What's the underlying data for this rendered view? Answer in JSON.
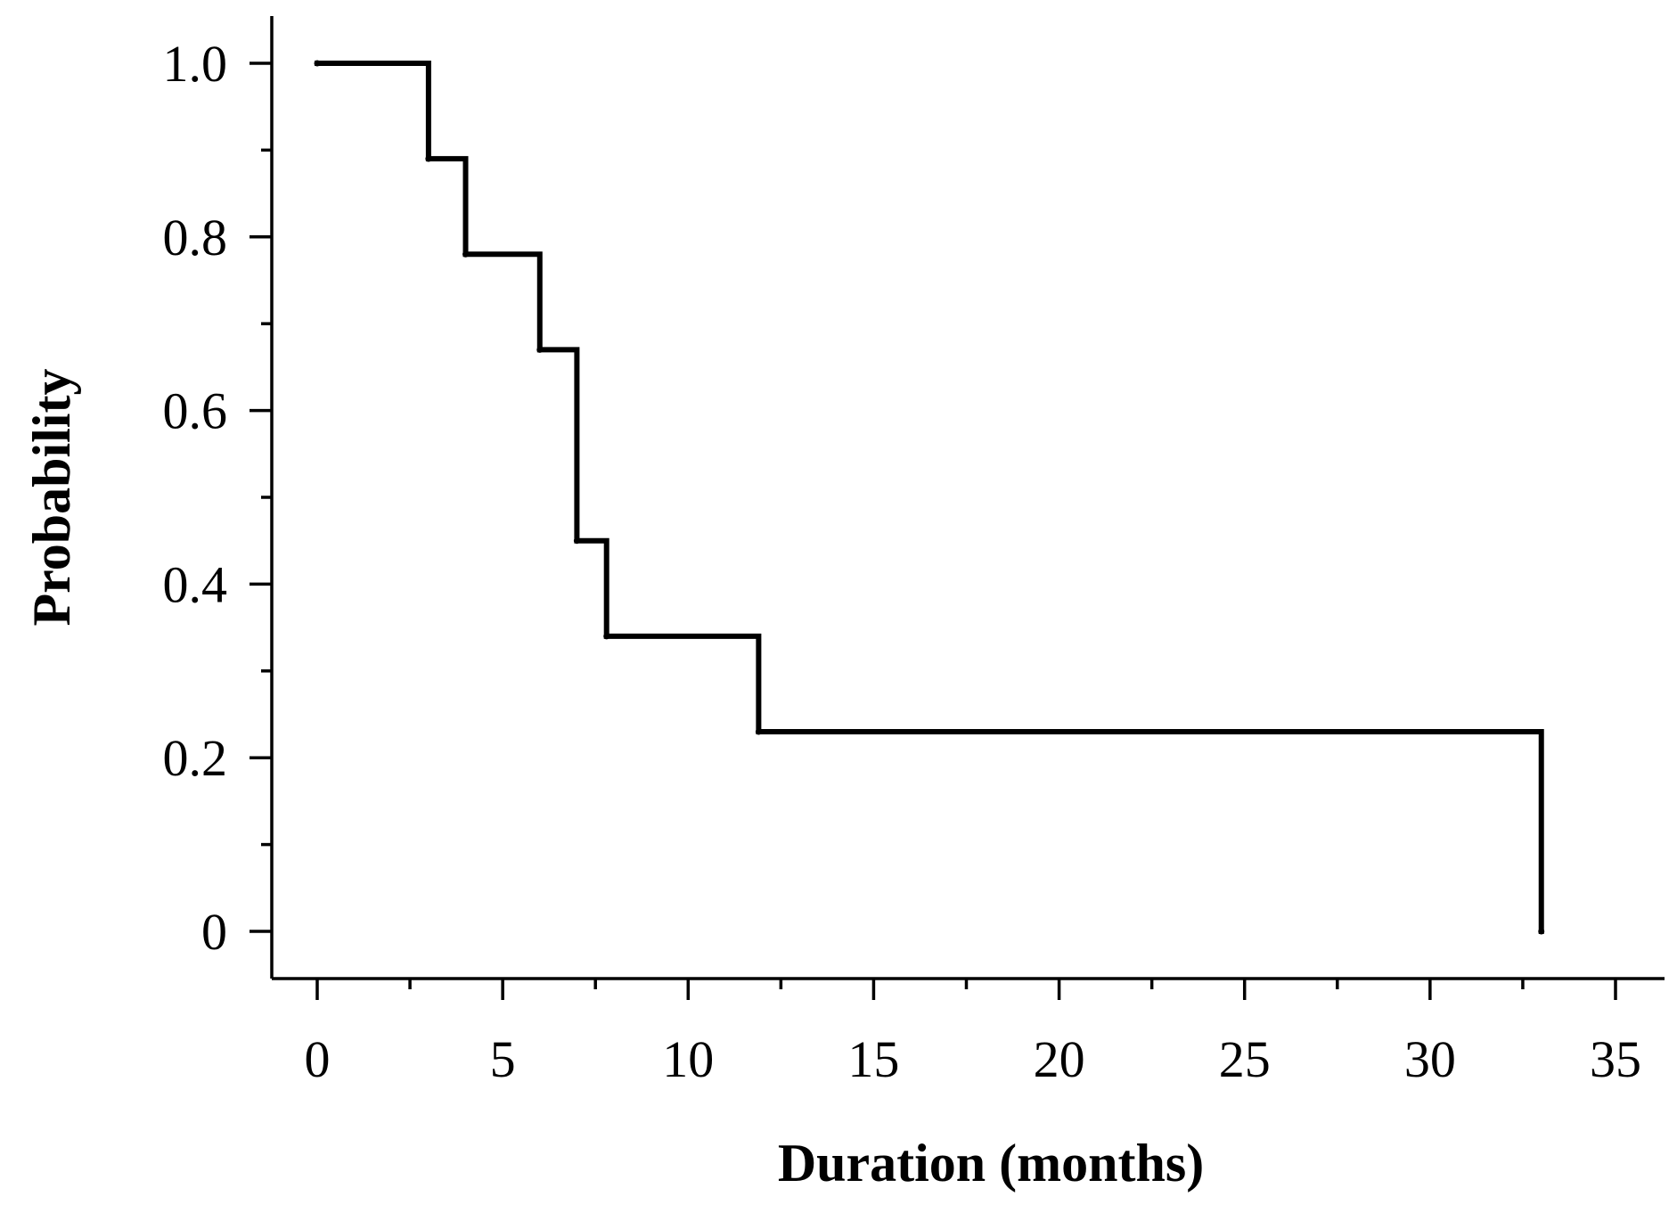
{
  "chart_data": {
    "type": "line",
    "step": "post",
    "xlabel": "Duration (months)",
    "ylabel": "Probability",
    "xlim": [
      0,
      35
    ],
    "ylim": [
      0,
      1.0
    ],
    "x_ticks": [
      0,
      5,
      10,
      15,
      20,
      25,
      30,
      35
    ],
    "x_tick_labels": [
      "0",
      "5",
      "10",
      "15",
      "20",
      "25",
      "30",
      "35"
    ],
    "y_ticks": [
      0,
      0.2,
      0.4,
      0.6,
      0.8,
      1.0
    ],
    "y_tick_labels": [
      "0",
      "0.2",
      "0.4",
      "0.6",
      "0.8",
      "1.0"
    ],
    "grid": false,
    "series": [
      {
        "x": [
          0,
          3,
          4,
          6,
          7,
          7.8,
          11.9,
          33
        ],
        "y": [
          1.0,
          0.89,
          0.78,
          0.67,
          0.45,
          0.34,
          0.23,
          0.0
        ]
      }
    ]
  }
}
